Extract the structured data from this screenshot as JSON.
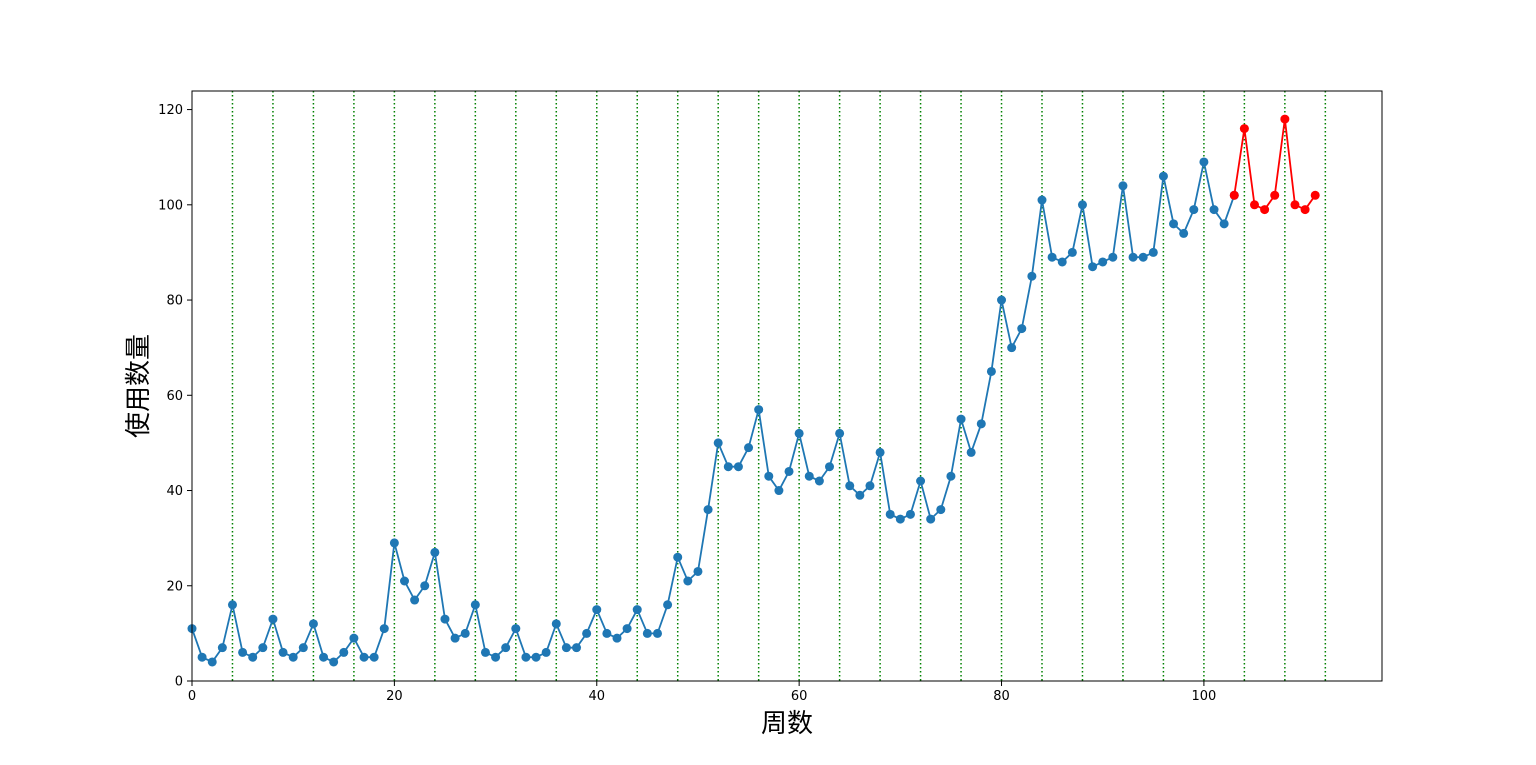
{
  "chart_data": {
    "type": "line",
    "title": "",
    "xlabel": "周数",
    "ylabel": "使用数量",
    "xlim": [
      0,
      117.6
    ],
    "ylim": [
      0,
      123.9
    ],
    "xticks": [
      0,
      20,
      40,
      60,
      80,
      100
    ],
    "yticks": [
      0,
      20,
      40,
      60,
      80,
      100,
      120
    ],
    "grid": false,
    "vlines": {
      "x": [
        4,
        8,
        12,
        16,
        20,
        24,
        28,
        32,
        36,
        40,
        44,
        48,
        52,
        56,
        60,
        64,
        68,
        72,
        76,
        80,
        84,
        88,
        92,
        96,
        100,
        104,
        108,
        112
      ],
      "color": "#008000",
      "style": "dotted"
    },
    "series": [
      {
        "color": "#1f77b4",
        "marker": "circle",
        "x": [
          0,
          1,
          2,
          3,
          4,
          5,
          6,
          7,
          8,
          9,
          10,
          11,
          12,
          13,
          14,
          15,
          16,
          17,
          18,
          19,
          20,
          21,
          22,
          23,
          24,
          25,
          26,
          27,
          28,
          29,
          30,
          31,
          32,
          33,
          34,
          35,
          36,
          37,
          38,
          39,
          40,
          41,
          42,
          43,
          44,
          45,
          46,
          47,
          48,
          49,
          50,
          51,
          52,
          53,
          54,
          55,
          56,
          57,
          58,
          59,
          60,
          61,
          62,
          63,
          64,
          65,
          66,
          67,
          68,
          69,
          70,
          71,
          72,
          73,
          74,
          75,
          76,
          77,
          78,
          79,
          80,
          81,
          82,
          83,
          84,
          85,
          86,
          87,
          88,
          89,
          90,
          91,
          92,
          93,
          94,
          95,
          96,
          97,
          98,
          99,
          100,
          101,
          102,
          103
        ],
        "values": [
          11,
          5,
          4,
          7,
          16,
          6,
          5,
          7,
          13,
          6,
          5,
          7,
          12,
          5,
          4,
          6,
          9,
          5,
          5,
          11,
          29,
          21,
          17,
          20,
          27,
          13,
          9,
          10,
          16,
          6,
          5,
          7,
          11,
          5,
          5,
          6,
          12,
          7,
          7,
          10,
          15,
          10,
          9,
          11,
          15,
          10,
          10,
          16,
          26,
          21,
          23,
          36,
          50,
          45,
          45,
          49,
          57,
          43,
          40,
          44,
          52,
          43,
          42,
          45,
          52,
          41,
          39,
          41,
          48,
          35,
          34,
          35,
          42,
          34,
          36,
          43,
          55,
          48,
          54,
          65,
          80,
          70,
          74,
          85,
          101,
          89,
          88,
          90,
          100,
          87,
          88,
          89,
          104,
          89,
          89,
          90,
          106,
          96,
          94,
          99,
          109,
          99,
          96,
          102
        ]
      },
      {
        "color": "#ff0000",
        "marker": "circle",
        "x": [
          103,
          104,
          105,
          106,
          107,
          108,
          109,
          110,
          111
        ],
        "values": [
          102,
          116,
          100,
          99,
          102,
          118,
          100,
          99,
          102
        ]
      }
    ]
  }
}
